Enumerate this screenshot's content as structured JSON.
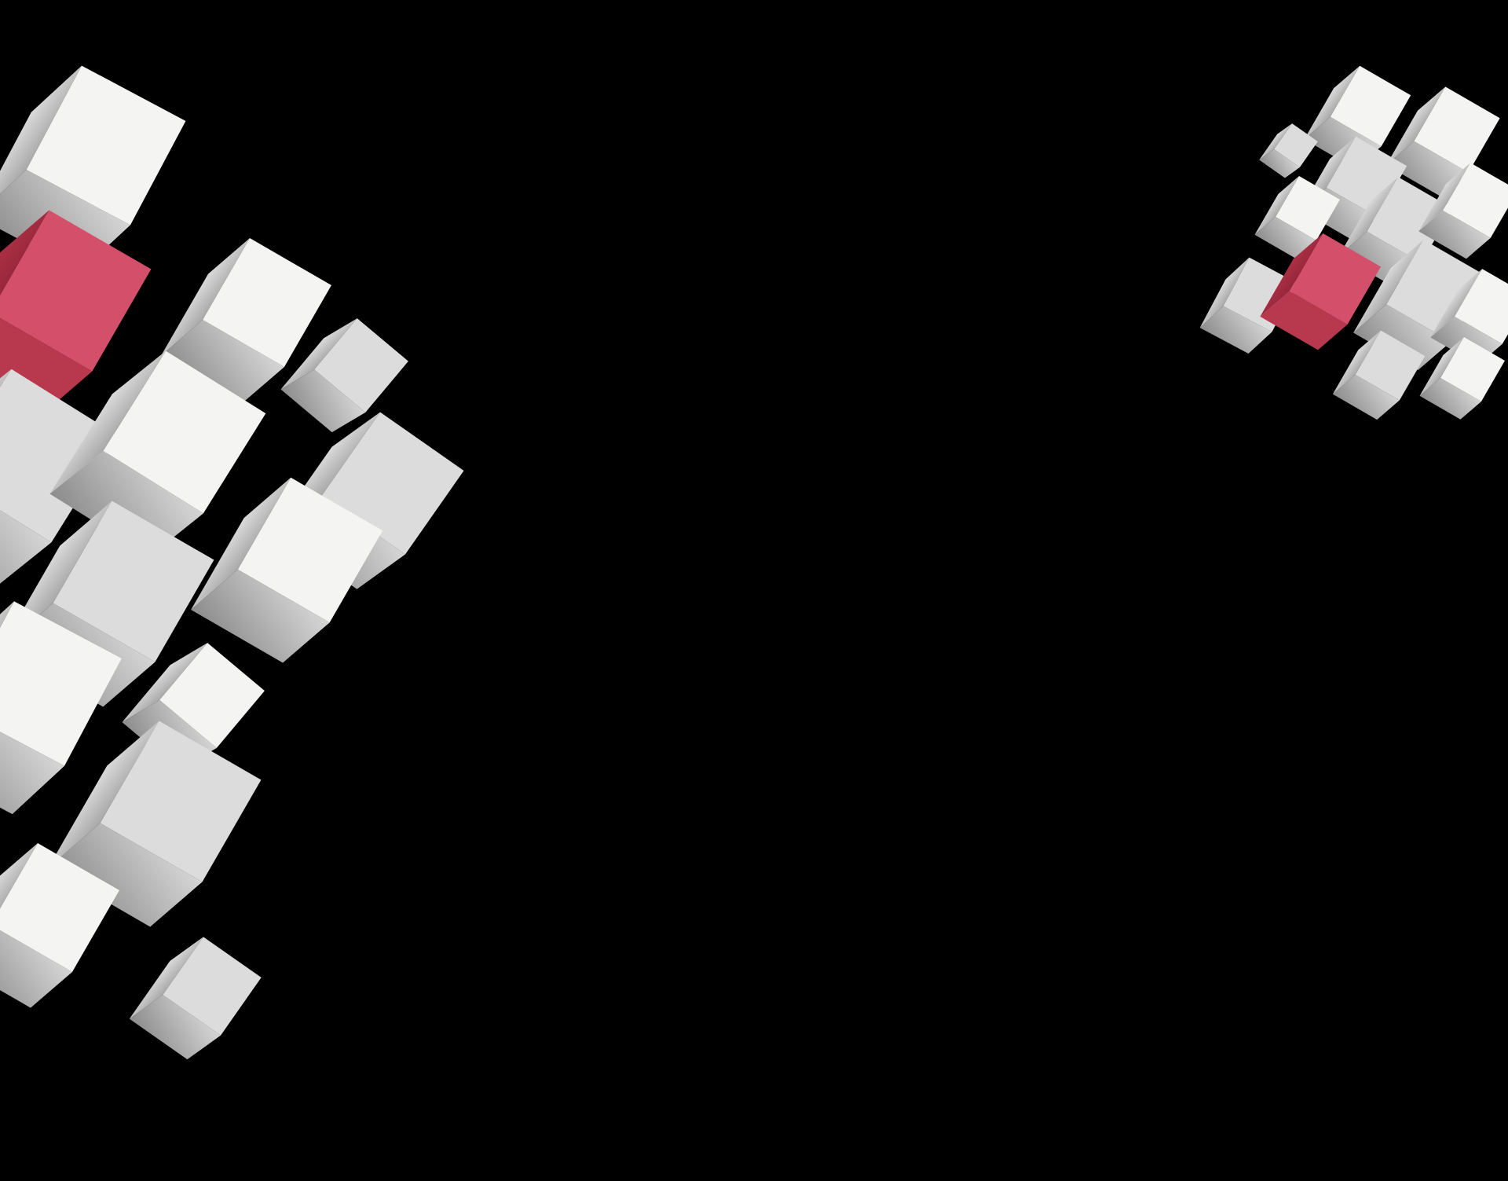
{
  "canvas": {
    "background": "#000000"
  },
  "palette": {
    "white_top": "#f4f4f2",
    "white_left": "#dcdcdc",
    "white_right": "#c4c4c4",
    "shadow": "#8a8a8a",
    "red_top": "#e06478",
    "red_left": "#d4506a",
    "red_right": "#b8384e"
  },
  "clusters": [
    {
      "name": "left-cube-cluster",
      "accent_cube_color": "red"
    },
    {
      "name": "right-cube-cluster",
      "accent_cube_color": "red"
    }
  ]
}
